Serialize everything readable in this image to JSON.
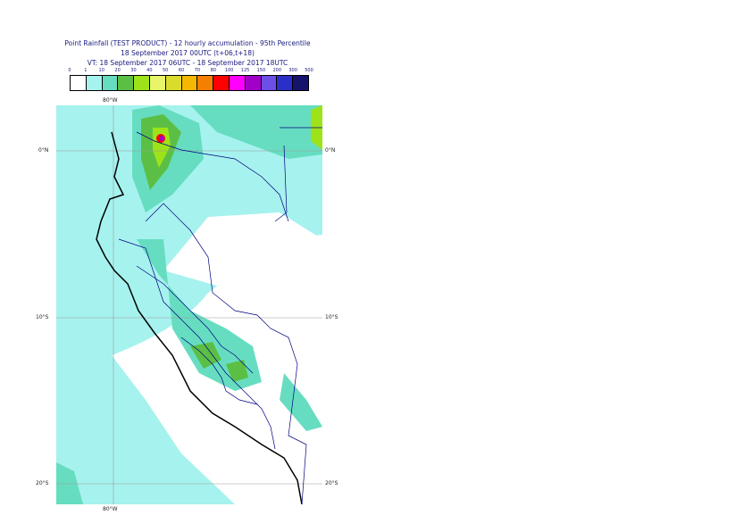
{
  "title": {
    "line1": "Point Rainfall (TEST PRODUCT) - 12 hourly accumulation - 95th Percentile",
    "line2": "18 September 2017 00UTC (t+06,t+18)",
    "line3": "VT: 18 September 2017 06UTC - 18 September 2017 18UTC"
  },
  "colorbar": {
    "ticks": [
      "0",
      "1",
      "10",
      "20",
      "30",
      "40",
      "50",
      "60",
      "70",
      "80",
      "100",
      "125",
      "150",
      "200",
      "300",
      "500"
    ],
    "colors": [
      "#ffffff",
      "#a6f2ee",
      "#66ddc0",
      "#5cbf45",
      "#9ee31a",
      "#e8f56a",
      "#d9dc2a",
      "#f5b800",
      "#f57f00",
      "#ff0000",
      "#ff00ff",
      "#a000c8",
      "#6b4fe6",
      "#2a2fc9",
      "#15136b"
    ]
  },
  "map": {
    "labels": {
      "lon_top": "80°W",
      "lon_bottom": "80°W",
      "lat_0_left": "0°N",
      "lat_0_right": "0°N",
      "lat_10_left": "10°S",
      "lat_10_right": "10°S",
      "lat_20_left": "20°S",
      "lat_20_right": "20°S"
    },
    "colors": {
      "ocean_background": "#a6f2ee",
      "dry_land": "#ffffff",
      "coast": "#000000",
      "borders": "#000080"
    }
  }
}
